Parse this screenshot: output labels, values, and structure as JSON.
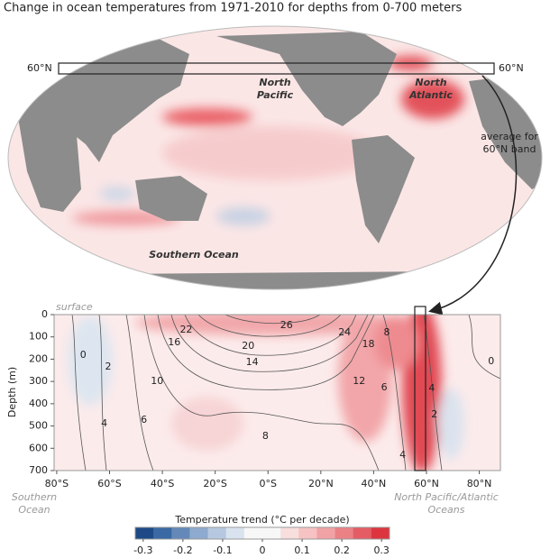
{
  "chart_data": [
    {
      "type": "map",
      "title": "Change in ocean temperatures from 1971-2010 for depths from 0-700 meters",
      "band_labels": [
        "60°N",
        "60°N"
      ],
      "region_labels": [
        [
          "North",
          "Pacific"
        ],
        [
          "North",
          "Atlantic"
        ],
        [
          "Southern Ocean"
        ]
      ],
      "callout": [
        "average for",
        "60°N band"
      ]
    },
    {
      "type": "contour",
      "surface_label": "surface",
      "y_label": "Depth (m)",
      "xlim": [
        -81,
        88
      ],
      "xticks": [
        {
          "value": -80,
          "label": "80°S"
        },
        {
          "value": -60,
          "label": "60°S"
        },
        {
          "value": -40,
          "label": "40°S"
        },
        {
          "value": -20,
          "label": "20°S"
        },
        {
          "value": 0,
          "label": "0°S"
        },
        {
          "value": 20,
          "label": "20°N"
        },
        {
          "value": 40,
          "label": "40°N"
        },
        {
          "value": 60,
          "label": "60°N"
        },
        {
          "value": 80,
          "label": "80°N"
        }
      ],
      "ylim": [
        0,
        700
      ],
      "yticks": [
        0,
        100,
        200,
        300,
        400,
        500,
        600,
        700
      ],
      "x_notes": [
        [
          "Southern",
          "Ocean"
        ],
        [
          "North Pacific/Atlantic",
          "Oceans"
        ]
      ],
      "contour_labels": [
        {
          "value": 26,
          "lat": 7,
          "depth": 49
        },
        {
          "value": 24,
          "lat": 29,
          "depth": 81
        },
        {
          "value": 22,
          "lat": -31,
          "depth": 69
        },
        {
          "value": 20,
          "lat": -7.5,
          "depth": 142
        },
        {
          "value": 18,
          "lat": 38,
          "depth": 134
        },
        {
          "value": 16,
          "lat": -35.5,
          "depth": 125
        },
        {
          "value": 14,
          "lat": -6,
          "depth": 214
        },
        {
          "value": 12,
          "lat": 34.5,
          "depth": 300
        },
        {
          "value": 10,
          "lat": -42,
          "depth": 300
        },
        {
          "value": 8,
          "lat": 45,
          "depth": 81
        },
        {
          "value": 8,
          "lat": -1,
          "depth": 546
        },
        {
          "value": 6,
          "lat": -47,
          "depth": 473
        },
        {
          "value": 6,
          "lat": 44,
          "depth": 328
        },
        {
          "value": 4,
          "lat": -62,
          "depth": 490
        },
        {
          "value": 4,
          "lat": 62,
          "depth": 332
        },
        {
          "value": 4,
          "lat": 51,
          "depth": 631
        },
        {
          "value": 2,
          "lat": -60.5,
          "depth": 235
        },
        {
          "value": 2,
          "lat": 63,
          "depth": 449
        },
        {
          "value": 0,
          "lat": -70,
          "depth": 182
        },
        {
          "value": 0,
          "lat": 84.5,
          "depth": 210
        }
      ]
    },
    {
      "type": "colorbar",
      "title": "Temperature trend (°C per decade)",
      "xlim": [
        -0.32,
        0.32
      ],
      "xticks": [
        -0.3,
        -0.2,
        -0.1,
        0,
        0.1,
        0.2,
        0.3
      ],
      "colors": [
        "#1d4a87",
        "#3a69a3",
        "#6489b9",
        "#8eaace",
        "#b6c8e0",
        "#d9e3ef",
        "#f7f7f7",
        "#f7f7f7",
        "#f9dede",
        "#f6c2c3",
        "#f1a2a5",
        "#eb8085",
        "#e45d64",
        "#dc3540"
      ]
    }
  ]
}
